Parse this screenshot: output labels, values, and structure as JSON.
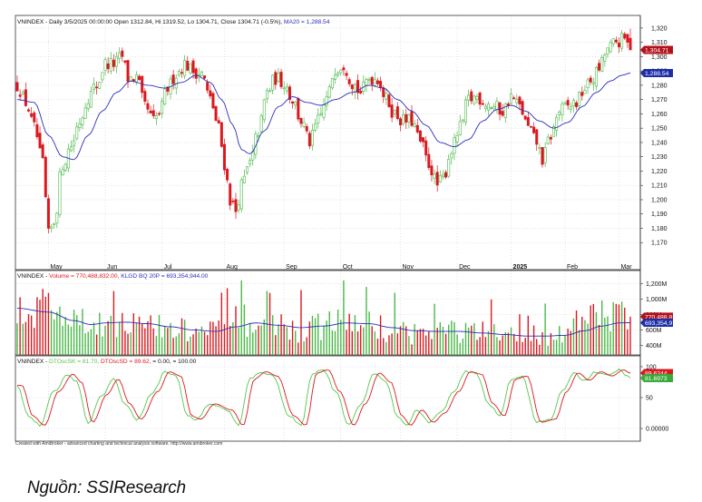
{
  "source_note": "Nguồn: SSIResearch",
  "credit": "Created with AmiBroker - advanced charting and technical analysis software. http://www.amibroker.com",
  "colors": {
    "up": "#4bb849",
    "down": "#d9191f",
    "ma_line": "#2a2fb8",
    "osc_k": "#56c64b",
    "osc_d": "#d9191f",
    "grid": "#c8c8c8",
    "close_tag": "#b3121c",
    "ma_tag": "#1e2fa6",
    "vol_tag": "#1e2fa6",
    "k_tag": "#3aa83a",
    "d_tag": "#d9191f"
  },
  "chart_data": [
    {
      "type": "candlestick",
      "title": "VNINDEX - Daily 3/5/2025 00:00:00 Open 1312.84, Hi 1319.52, Lo 1304.71, Close 1304.71 (-0.5%)",
      "ma_label": "MA20 = 1,288.54",
      "ylim": [
        1160,
        1325
      ],
      "yticks": [
        1170,
        1180,
        1190,
        1200,
        1210,
        1220,
        1230,
        1240,
        1250,
        1260,
        1270,
        1280,
        1290,
        1300,
        1310,
        1320
      ],
      "ytick_labels": [
        "1,170",
        "1,180",
        "1,190",
        "1,200",
        "1,210",
        "1,220",
        "1,230",
        "1,240",
        "1,250",
        "1,260",
        "1,270",
        "1,280",
        "1,290",
        "1,300",
        "1,310",
        "1,320"
      ],
      "months": [
        "May",
        "Jun",
        "Jul",
        "Aug",
        "Sep",
        "Oct",
        "Nov",
        "Dec",
        "2025",
        "Feb",
        "Mar"
      ],
      "month_index": [
        11,
        31,
        51,
        73,
        94,
        114,
        135,
        155,
        174,
        193,
        212
      ],
      "n": 217,
      "anchors": [
        [
          0,
          1280
        ],
        [
          3,
          1268
        ],
        [
          6,
          1250
        ],
        [
          9,
          1225
        ],
        [
          11,
          1175
        ],
        [
          13,
          1185
        ],
        [
          16,
          1225
        ],
        [
          19,
          1238
        ],
        [
          22,
          1255
        ],
        [
          25,
          1272
        ],
        [
          28,
          1280
        ],
        [
          31,
          1295
        ],
        [
          34,
          1295
        ],
        [
          37,
          1300
        ],
        [
          39,
          1285
        ],
        [
          42,
          1285
        ],
        [
          45,
          1265
        ],
        [
          48,
          1255
        ],
        [
          50,
          1260
        ],
        [
          53,
          1278
        ],
        [
          56,
          1288
        ],
        [
          59,
          1295
        ],
        [
          62,
          1290
        ],
        [
          65,
          1288
        ],
        [
          68,
          1270
        ],
        [
          71,
          1250
        ],
        [
          73,
          1225
        ],
        [
          75,
          1200
        ],
        [
          77,
          1192
        ],
        [
          79,
          1210
        ],
        [
          82,
          1225
        ],
        [
          85,
          1248
        ],
        [
          88,
          1275
        ],
        [
          91,
          1285
        ],
        [
          94,
          1282
        ],
        [
          97,
          1270
        ],
        [
          100,
          1255
        ],
        [
          103,
          1240
        ],
        [
          106,
          1255
        ],
        [
          109,
          1270
        ],
        [
          112,
          1292
        ],
        [
          115,
          1295
        ],
        [
          118,
          1282
        ],
        [
          121,
          1275
        ],
        [
          124,
          1285
        ],
        [
          127,
          1285
        ],
        [
          130,
          1270
        ],
        [
          133,
          1260
        ],
        [
          136,
          1255
        ],
        [
          139,
          1255
        ],
        [
          142,
          1240
        ],
        [
          145,
          1225
        ],
        [
          148,
          1210
        ],
        [
          150,
          1215
        ],
        [
          153,
          1235
        ],
        [
          156,
          1250
        ],
        [
          159,
          1270
        ],
        [
          162,
          1272
        ],
        [
          165,
          1268
        ],
        [
          168,
          1265
        ],
        [
          171,
          1262
        ],
        [
          174,
          1272
        ],
        [
          177,
          1265
        ],
        [
          180,
          1250
        ],
        [
          183,
          1240
        ],
        [
          185,
          1228
        ],
        [
          188,
          1245
        ],
        [
          191,
          1262
        ],
        [
          194,
          1265
        ],
        [
          197,
          1268
        ],
        [
          200,
          1278
        ],
        [
          203,
          1285
        ],
        [
          205,
          1292
        ],
        [
          208,
          1305
        ],
        [
          211,
          1310
        ],
        [
          214,
          1312
        ],
        [
          216,
          1304.71
        ]
      ],
      "ma_anchors": [
        [
          0,
          1270
        ],
        [
          6,
          1268
        ],
        [
          11,
          1245
        ],
        [
          16,
          1230
        ],
        [
          20,
          1228
        ],
        [
          25,
          1245
        ],
        [
          30,
          1262
        ],
        [
          35,
          1275
        ],
        [
          40,
          1283
        ],
        [
          46,
          1280
        ],
        [
          52,
          1278
        ],
        [
          58,
          1282
        ],
        [
          63,
          1287
        ],
        [
          68,
          1282
        ],
        [
          72,
          1270
        ],
        [
          76,
          1252
        ],
        [
          79,
          1235
        ],
        [
          82,
          1232
        ],
        [
          87,
          1248
        ],
        [
          92,
          1265
        ],
        [
          97,
          1272
        ],
        [
          102,
          1268
        ],
        [
          107,
          1266
        ],
        [
          112,
          1270
        ],
        [
          118,
          1275
        ],
        [
          124,
          1280
        ],
        [
          129,
          1278
        ],
        [
          134,
          1270
        ],
        [
          139,
          1262
        ],
        [
          144,
          1252
        ],
        [
          149,
          1240
        ],
        [
          154,
          1237
        ],
        [
          159,
          1242
        ],
        [
          164,
          1255
        ],
        [
          169,
          1263
        ],
        [
          174,
          1266
        ],
        [
          179,
          1262
        ],
        [
          184,
          1255
        ],
        [
          189,
          1250
        ],
        [
          194,
          1254
        ],
        [
          199,
          1265
        ],
        [
          204,
          1275
        ],
        [
          209,
          1283
        ],
        [
          213,
          1287
        ],
        [
          216,
          1288.54
        ]
      ],
      "close_tag": "1,304.71",
      "ma_tag": "1,288.54"
    },
    {
      "type": "bar",
      "title_prefix": "VNINDEX - ",
      "title_volume": "Volume = 770,488,832.00,",
      "title_klgd": "KLGD BQ 20P = 693,354,944.00",
      "ylim": [
        300,
        1250
      ],
      "yticks": [
        400,
        600,
        800,
        1000,
        1200
      ],
      "ytick_labels": [
        "400M",
        "600M",
        "800M",
        "1,000M",
        "1,200M"
      ],
      "vol_anchors": [
        [
          0,
          850
        ],
        [
          6,
          820
        ],
        [
          11,
          1000
        ],
        [
          14,
          780
        ],
        [
          20,
          700
        ],
        [
          26,
          650
        ],
        [
          31,
          720
        ],
        [
          37,
          700
        ],
        [
          44,
          650
        ],
        [
          50,
          620
        ],
        [
          56,
          600
        ],
        [
          62,
          580
        ],
        [
          68,
          560
        ],
        [
          73,
          680
        ],
        [
          79,
          720
        ],
        [
          85,
          690
        ],
        [
          92,
          650
        ],
        [
          97,
          620
        ],
        [
          103,
          600
        ],
        [
          109,
          680
        ],
        [
          115,
          720
        ],
        [
          121,
          680
        ],
        [
          127,
          640
        ],
        [
          133,
          600
        ],
        [
          139,
          580
        ],
        [
          145,
          560
        ],
        [
          150,
          620
        ],
        [
          155,
          580
        ],
        [
          161,
          560
        ],
        [
          167,
          540
        ],
        [
          172,
          520
        ],
        [
          178,
          520
        ],
        [
          184,
          530
        ],
        [
          189,
          560
        ],
        [
          194,
          620
        ],
        [
          199,
          700
        ],
        [
          204,
          760
        ],
        [
          209,
          800
        ],
        [
          213,
          820
        ],
        [
          216,
          770
        ]
      ],
      "avg_anchors": [
        [
          0,
          880
        ],
        [
          11,
          830
        ],
        [
          20,
          720
        ],
        [
          26,
          670
        ],
        [
          31,
          690
        ],
        [
          38,
          700
        ],
        [
          46,
          680
        ],
        [
          54,
          640
        ],
        [
          62,
          600
        ],
        [
          70,
          580
        ],
        [
          77,
          640
        ],
        [
          84,
          690
        ],
        [
          92,
          660
        ],
        [
          100,
          630
        ],
        [
          108,
          650
        ],
        [
          116,
          690
        ],
        [
          124,
          680
        ],
        [
          132,
          630
        ],
        [
          140,
          590
        ],
        [
          148,
          580
        ],
        [
          156,
          580
        ],
        [
          164,
          560
        ],
        [
          172,
          540
        ],
        [
          180,
          520
        ],
        [
          186,
          520
        ],
        [
          193,
          530
        ],
        [
          200,
          590
        ],
        [
          206,
          650
        ],
        [
          212,
          690
        ],
        [
          216,
          693
        ]
      ],
      "vol_tag": "693,354,9",
      "vol_tag2": "770,488,8"
    },
    {
      "type": "line",
      "title_prefix": "VNINDEX - ",
      "title_k": "DTOscSK = 81.70,",
      "title_d": "DTOscSD = 89.62,",
      "title_rest": "= 0.00,          = 100.00",
      "ylim": [
        -10,
        105
      ],
      "yticks": [
        0,
        50,
        100
      ],
      "ytick_labels": [
        "0.00000",
        "50",
        "100"
      ],
      "osc_peaks": [
        [
          0,
          70
        ],
        [
          4,
          20
        ],
        [
          8,
          5
        ],
        [
          13,
          60
        ],
        [
          18,
          88
        ],
        [
          21,
          75
        ],
        [
          25,
          10
        ],
        [
          30,
          55
        ],
        [
          34,
          80
        ],
        [
          38,
          40
        ],
        [
          42,
          15
        ],
        [
          48,
          60
        ],
        [
          52,
          92
        ],
        [
          56,
          85
        ],
        [
          60,
          20
        ],
        [
          63,
          15
        ],
        [
          68,
          40
        ],
        [
          74,
          30
        ],
        [
          78,
          5
        ],
        [
          82,
          80
        ],
        [
          86,
          92
        ],
        [
          90,
          85
        ],
        [
          96,
          20
        ],
        [
          100,
          5
        ],
        [
          104,
          90
        ],
        [
          108,
          95
        ],
        [
          112,
          60
        ],
        [
          117,
          5
        ],
        [
          121,
          40
        ],
        [
          126,
          90
        ],
        [
          130,
          75
        ],
        [
          134,
          20
        ],
        [
          137,
          5
        ],
        [
          141,
          30
        ],
        [
          145,
          10
        ],
        [
          149,
          25
        ],
        [
          154,
          60
        ],
        [
          158,
          92
        ],
        [
          162,
          88
        ],
        [
          166,
          40
        ],
        [
          170,
          20
        ],
        [
          174,
          80
        ],
        [
          178,
          85
        ],
        [
          183,
          10
        ],
        [
          188,
          15
        ],
        [
          192,
          60
        ],
        [
          196,
          90
        ],
        [
          200,
          78
        ],
        [
          204,
          92
        ],
        [
          208,
          85
        ],
        [
          212,
          95
        ],
        [
          216,
          82
        ]
      ],
      "k_tag": "81.6973",
      "d_tag": "89.6244"
    }
  ]
}
